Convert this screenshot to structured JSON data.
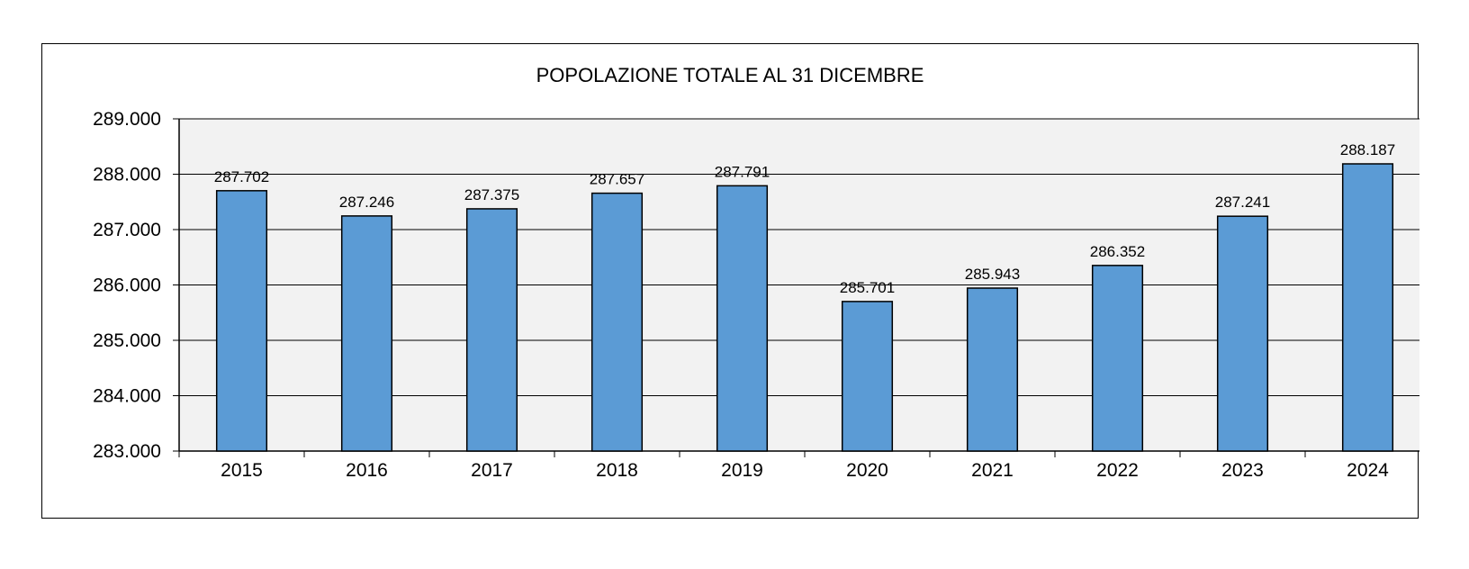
{
  "chart_data": {
    "type": "bar",
    "title": "POPOLAZIONE  TOTALE AL 31 DICEMBRE",
    "categories": [
      "2015",
      "2016",
      "2017",
      "2018",
      "2019",
      "2020",
      "2021",
      "2022",
      "2023",
      "2024"
    ],
    "values": [
      287702,
      287246,
      287375,
      287657,
      287791,
      285701,
      285943,
      286352,
      287241,
      288187
    ],
    "value_labels": [
      "287.702",
      "287.246",
      "287.375",
      "287.657",
      "287.791",
      "285.701",
      "285.943",
      "286.352",
      "287.241",
      "288.187"
    ],
    "ylim": [
      283000,
      289000
    ],
    "y_ticks": [
      283000,
      284000,
      285000,
      286000,
      287000,
      288000,
      289000
    ],
    "y_tick_labels": [
      "283.000",
      "284.000",
      "285.000",
      "286.000",
      "287.000",
      "288.000",
      "289.000"
    ],
    "xlabel": "",
    "ylabel": "",
    "grid": true,
    "colors": {
      "bar": "#5b9bd5",
      "plot_bg": "#f2f2f2",
      "grid": "#000000"
    }
  }
}
